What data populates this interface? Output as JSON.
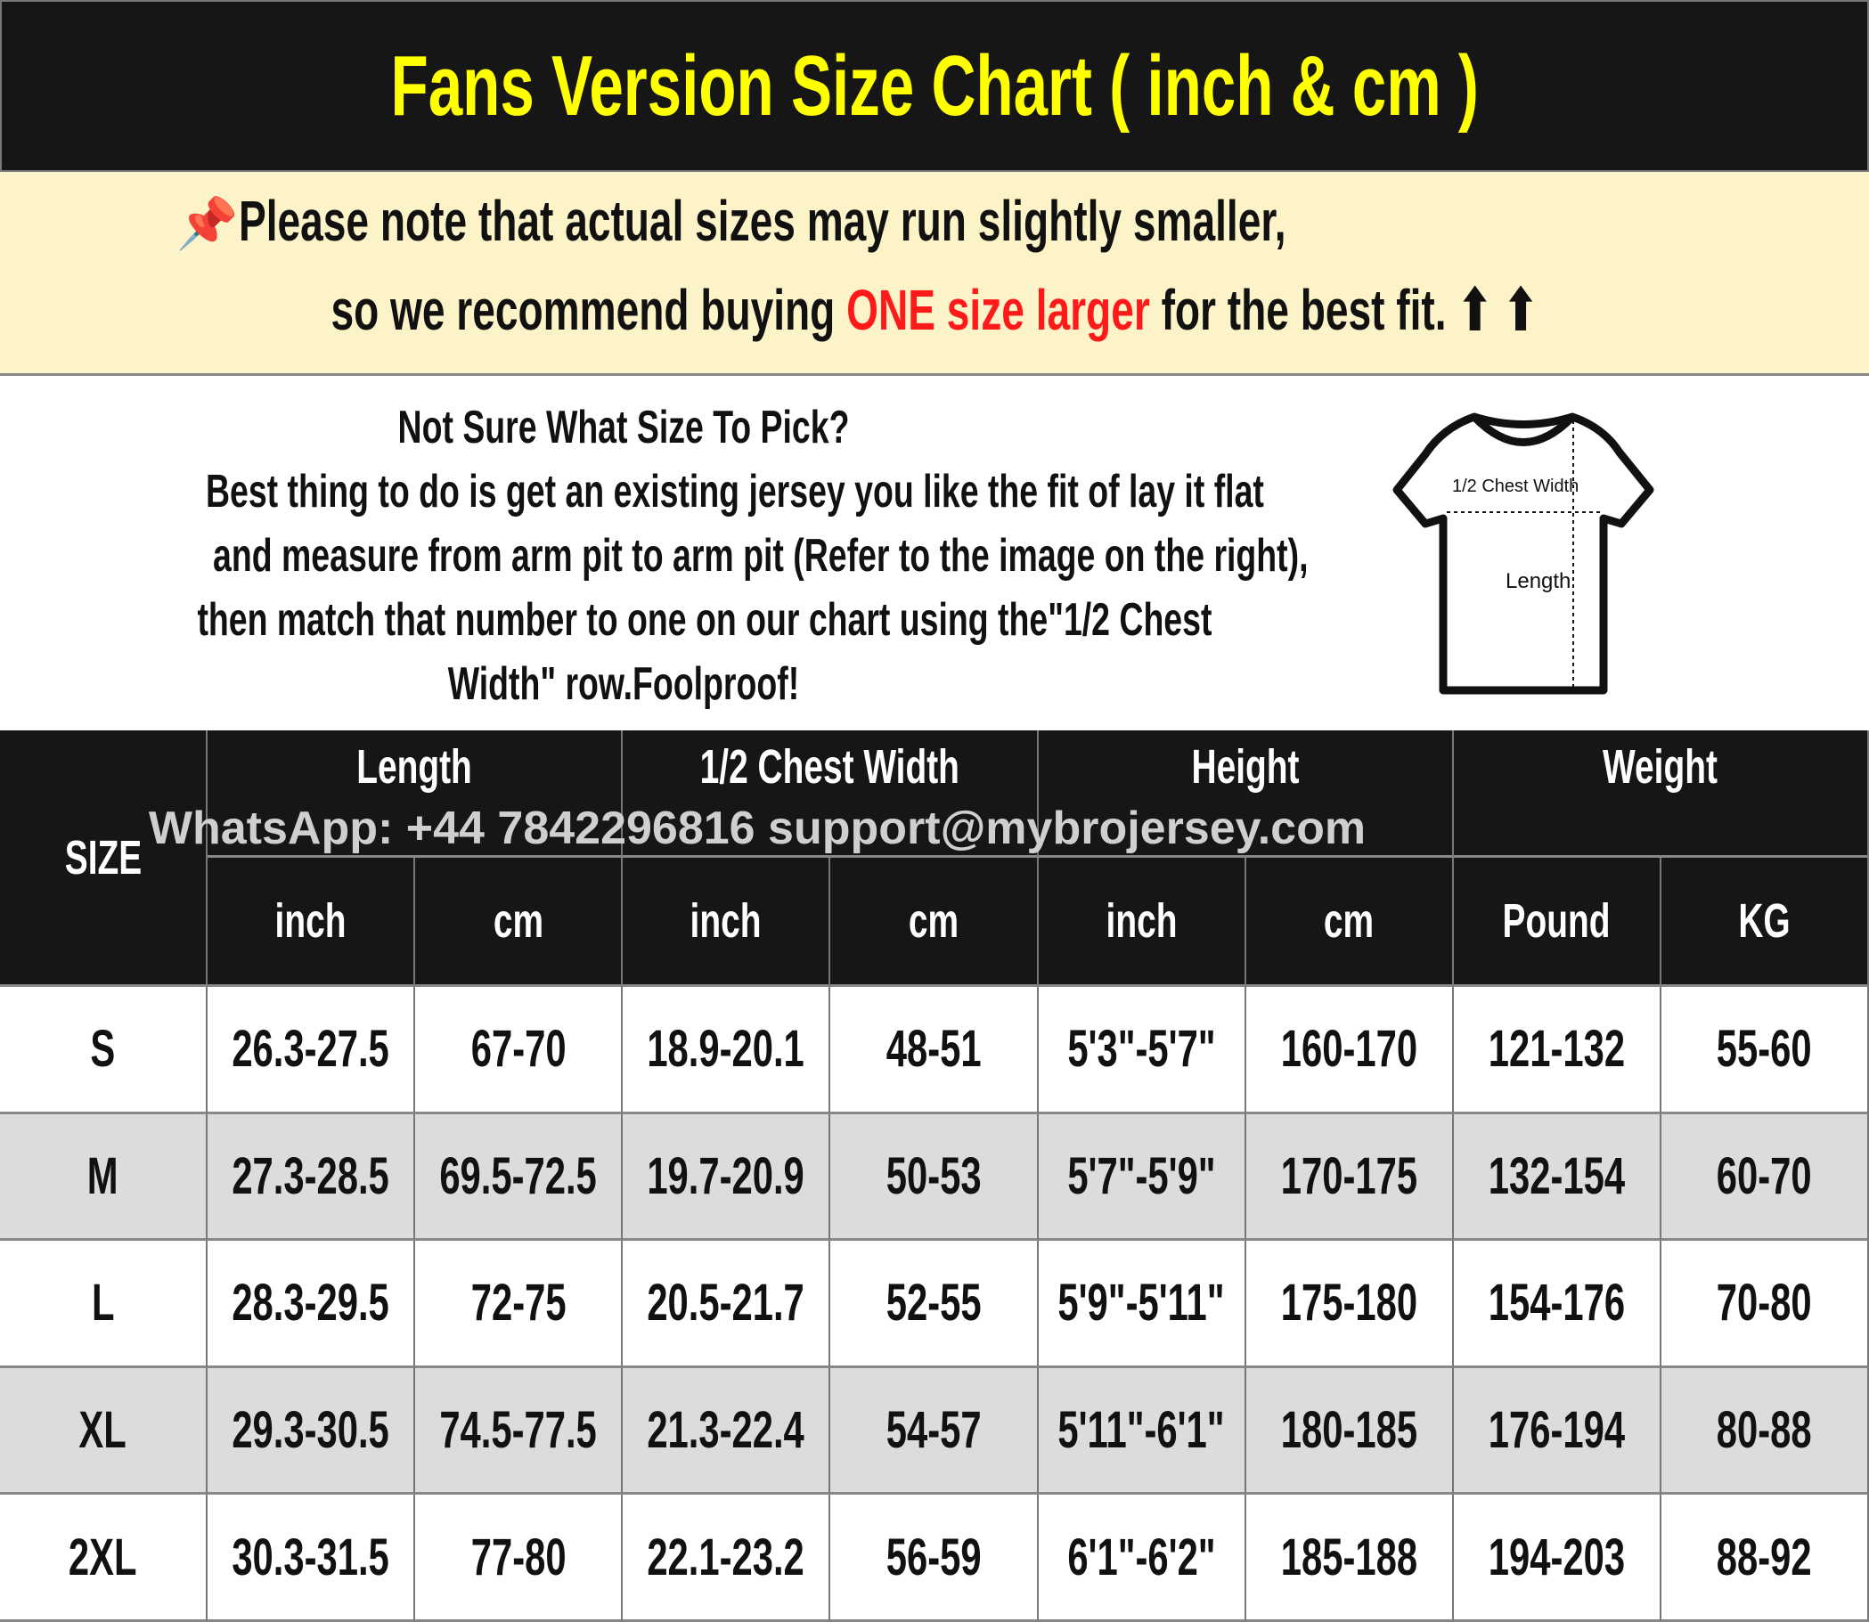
{
  "title": "Fans Version Size Chart ( inch & cm )",
  "note": {
    "line1": "Please note that actual sizes may run slightly smaller,",
    "line2_a": "so we recommend buying ",
    "line2_highlight": "ONE size larger",
    "line2_b": " for the best fit. ⬆ ⬆",
    "icon": "pushpin-icon",
    "highlight_color": "#ff1a1a"
  },
  "info": {
    "heading": "Not Sure What Size To Pick?",
    "lines": [
      "Best thing to do is get an existing jersey you like the fit of lay it flat",
      "and measure from arm pit to arm pit (Refer to the image on the right),",
      "then match that number to one on our chart using the\"1/2 Chest",
      "Width\" row.Foolproof!"
    ]
  },
  "diagram": {
    "chest_label": "1/2 Chest Width",
    "length_label": "Length"
  },
  "watermark": "WhatsApp: +44 7842296816  support@mybrojersey.com",
  "table": {
    "size_header": "SIZE",
    "groups": [
      "Length",
      "1/2 Chest Width",
      "Height",
      "Weight"
    ],
    "subheaders": [
      "inch",
      "cm",
      "inch",
      "cm",
      "inch",
      "cm",
      "Pound",
      "KG"
    ],
    "rows": [
      [
        "S",
        "26.3-27.5",
        "67-70",
        "18.9-20.1",
        "48-51",
        "5'3\"-5'7\"",
        "160-170",
        "121-132",
        "55-60"
      ],
      [
        "M",
        "27.3-28.5",
        "69.5-72.5",
        "19.7-20.9",
        "50-53",
        "5'7\"-5'9\"",
        "170-175",
        "132-154",
        "60-70"
      ],
      [
        "L",
        "28.3-29.5",
        "72-75",
        "20.5-21.7",
        "52-55",
        "5'9\"-5'11\"",
        "175-180",
        "154-176",
        "70-80"
      ],
      [
        "XL",
        "29.3-30.5",
        "74.5-77.5",
        "21.3-22.4",
        "54-57",
        "5'11\"-6'1\"",
        "180-185",
        "176-194",
        "80-88"
      ],
      [
        "2XL",
        "30.3-31.5",
        "77-80",
        "22.1-23.2",
        "56-59",
        "6'1\"-6'2\"",
        "185-188",
        "194-203",
        "88-92"
      ]
    ]
  },
  "colors": {
    "header_bg": "#161616",
    "title_text": "#ffff00",
    "note_bg": "#fdf3c8",
    "alt_row": "#dcdcdc"
  }
}
